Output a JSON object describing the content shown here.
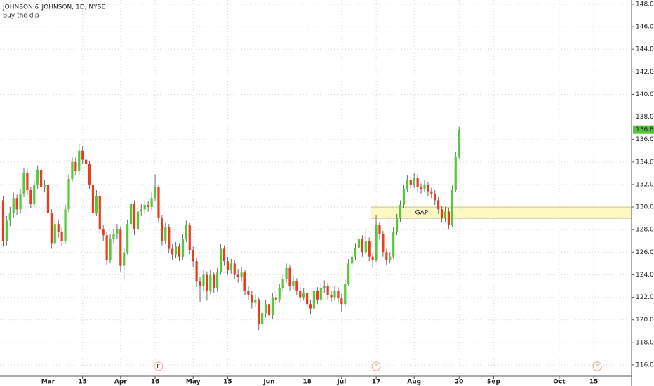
{
  "chart_data": {
    "type": "candlestick",
    "title": "JOHNSON & JOHNSON, 1D, NYSE",
    "subtitle": "Buy the dip",
    "categories": [
      null,
      null,
      null,
      null,
      null,
      null,
      null,
      null,
      null,
      null,
      null,
      null,
      null,
      "Mar",
      null,
      null,
      null,
      null,
      null,
      null,
      null,
      null,
      null,
      "15",
      null,
      null,
      null,
      null,
      null,
      null,
      null,
      null,
      null,
      null,
      "Apr",
      null,
      null,
      null,
      null,
      null,
      null,
      null,
      null,
      null,
      "16",
      null,
      null,
      null,
      null,
      null,
      null,
      null,
      null,
      null,
      null,
      "May",
      null,
      null,
      null,
      null,
      null,
      null,
      null,
      null,
      null,
      "15",
      null,
      null,
      null,
      null,
      null,
      null,
      null,
      null,
      null,
      null,
      null,
      "Jun",
      null,
      null,
      null,
      null,
      null,
      null,
      null,
      null,
      null,
      null,
      "18",
      null,
      null,
      null,
      null,
      null,
      null,
      null,
      null,
      null,
      "Jul",
      null,
      null,
      null,
      null,
      null,
      null,
      null,
      null,
      null,
      "17",
      null,
      null,
      null,
      null,
      null,
      null,
      null,
      null,
      null,
      null,
      "Aug",
      null,
      null,
      null,
      null,
      null,
      null,
      null,
      null,
      null,
      null,
      null,
      null,
      "20",
      null,
      null,
      null,
      null,
      null,
      null,
      null,
      null,
      null,
      "Sep",
      null,
      null,
      null,
      null,
      null,
      null,
      null,
      null,
      null,
      null,
      null,
      null,
      null,
      null,
      null,
      null,
      null,
      null,
      "Oct",
      null,
      null,
      null,
      null,
      null,
      null,
      null,
      null,
      null,
      "15",
      null,
      null,
      null,
      null,
      null,
      null,
      null,
      null
    ],
    "open": [
      130.6,
      127.0,
      128.8,
      129.5,
      130.8,
      129.8,
      131.2,
      133.0,
      131.5,
      130.3,
      132.0,
      133.3,
      131.8,
      132.0,
      129.5,
      126.8,
      128.5,
      127.8,
      127.0,
      129.8,
      132.5,
      134.0,
      133.2,
      135.0,
      134.2,
      133.8,
      132.0,
      129.5,
      131.0,
      128.0,
      127.5,
      125.3,
      127.2,
      127.6,
      128.0,
      124.8,
      126.0,
      128.5,
      130.3,
      128.0,
      129.6,
      129.8,
      130.2,
      130.0,
      130.8,
      131.8,
      129.0,
      127.0,
      128.2,
      126.3,
      125.8,
      126.5,
      125.6,
      127.2,
      128.4,
      126.2,
      125.2,
      123.4,
      123.0,
      124.0,
      122.6,
      124.0,
      122.8,
      124.2,
      126.3,
      125.2,
      124.4,
      125.0,
      124.0,
      123.8,
      124.2,
      122.6,
      122.2,
      121.5,
      121.8,
      119.6,
      120.6,
      121.4,
      120.4,
      122.0,
      121.8,
      122.8,
      123.6,
      124.6,
      123.0,
      123.4,
      122.6,
      122.0,
      122.4,
      121.4,
      121.0,
      122.6,
      121.8,
      122.8,
      123.0,
      122.2,
      122.0,
      122.6,
      121.9,
      121.4,
      123.2,
      125.0,
      125.6,
      126.4,
      127.2,
      126.0,
      127.0,
      125.6,
      125.3,
      128.4,
      127.6,
      126.0,
      125.3,
      125.6,
      127.8,
      129.0,
      130.2,
      131.6,
      132.4,
      132.0,
      132.6,
      131.8,
      131.6,
      132.0,
      131.4,
      131.2,
      130.6,
      129.8,
      129.0,
      129.6,
      128.4,
      131.5,
      134.5,
      null,
      null,
      null,
      null,
      null,
      null,
      null,
      null,
      null,
      null,
      null,
      null,
      null,
      null,
      null,
      null,
      null,
      null,
      null,
      null,
      null,
      null,
      null,
      null,
      null,
      null,
      null,
      null,
      null,
      null,
      null,
      null,
      null,
      null,
      null,
      null,
      null,
      null,
      null,
      null,
      null,
      null,
      null,
      null,
      null,
      null,
      null
    ],
    "high": [
      131.0,
      129.2,
      130.0,
      131.3,
      131.1,
      131.6,
      133.5,
      133.4,
      131.8,
      132.4,
      133.7,
      133.6,
      132.4,
      132.2,
      129.8,
      128.9,
      128.9,
      128.2,
      130.2,
      132.9,
      134.5,
      134.4,
      135.6,
      135.4,
      134.6,
      134.1,
      132.3,
      131.5,
      131.3,
      128.4,
      127.8,
      127.6,
      128.0,
      128.5,
      128.3,
      126.4,
      128.9,
      130.8,
      130.6,
      130.0,
      130.3,
      130.6,
      130.5,
      131.3,
      132.9,
      132.0,
      129.3,
      128.6,
      128.5,
      126.7,
      126.9,
      126.8,
      127.6,
      128.8,
      128.6,
      126.5,
      125.5,
      123.8,
      124.4,
      124.3,
      124.4,
      124.2,
      124.6,
      126.7,
      126.6,
      125.6,
      125.4,
      125.3,
      124.5,
      124.7,
      124.4,
      123.0,
      122.6,
      122.3,
      122.0,
      121.2,
      121.8,
      121.7,
      122.4,
      122.6,
      123.2,
      124.0,
      125.0,
      124.9,
      123.9,
      123.7,
      122.9,
      122.8,
      122.7,
      121.8,
      123.0,
      122.9,
      123.3,
      123.5,
      123.3,
      122.6,
      123.0,
      122.9,
      122.3,
      123.6,
      125.4,
      126.0,
      126.8,
      127.6,
      127.5,
      127.9,
      127.3,
      125.9,
      129.3,
      128.7,
      127.9,
      126.3,
      126.0,
      128.2,
      129.4,
      130.6,
      132.0,
      132.8,
      132.7,
      133.0,
      132.9,
      132.1,
      132.4,
      132.2,
      131.7,
      131.5,
      130.9,
      130.1,
      130.0,
      129.9,
      131.9,
      134.9,
      137.1,
      null,
      null,
      null,
      null,
      null,
      null,
      null,
      null,
      null,
      null,
      null,
      null,
      null,
      null,
      null,
      null,
      null,
      null,
      null,
      null,
      null,
      null,
      null,
      null,
      null,
      null,
      null,
      null,
      null,
      null,
      null,
      null,
      null,
      null,
      null,
      null,
      null,
      null,
      null,
      null,
      null,
      null,
      null,
      null,
      null,
      null,
      null
    ],
    "low": [
      126.5,
      126.6,
      128.3,
      129.1,
      129.3,
      129.4,
      130.9,
      131.1,
      129.9,
      130.0,
      131.6,
      131.4,
      131.3,
      129.1,
      126.3,
      126.5,
      127.3,
      126.6,
      126.8,
      129.5,
      132.2,
      132.8,
      132.9,
      133.8,
      133.3,
      131.6,
      129.0,
      129.2,
      127.6,
      127.0,
      124.9,
      125.0,
      126.8,
      127.2,
      124.3,
      123.6,
      125.8,
      128.2,
      127.5,
      127.7,
      129.2,
      129.4,
      129.6,
      129.7,
      130.5,
      128.6,
      126.6,
      126.7,
      125.9,
      125.3,
      125.5,
      125.2,
      125.3,
      126.9,
      125.8,
      124.7,
      122.9,
      121.6,
      122.6,
      121.7,
      122.3,
      122.4,
      122.5,
      124.0,
      124.8,
      124.0,
      124.1,
      123.6,
      123.3,
      123.4,
      122.2,
      121.8,
      121.0,
      121.1,
      119.1,
      119.2,
      120.2,
      120.0,
      120.1,
      121.3,
      121.5,
      122.5,
      123.3,
      122.6,
      122.7,
      122.2,
      121.6,
      121.7,
      120.9,
      120.5,
      120.8,
      121.4,
      121.5,
      122.4,
      121.8,
      121.6,
      121.7,
      121.5,
      120.7,
      121.1,
      123.0,
      124.7,
      125.3,
      126.1,
      125.6,
      125.8,
      125.2,
      124.6,
      125.1,
      127.1,
      125.6,
      124.9,
      125.0,
      125.4,
      127.5,
      128.7,
      129.9,
      131.3,
      131.6,
      131.7,
      131.4,
      131.2,
      131.3,
      131.0,
      130.8,
      130.2,
      129.4,
      128.6,
      128.7,
      128.0,
      128.2,
      131.3,
      134.3,
      null,
      null,
      null,
      null,
      null,
      null,
      null,
      null,
      null,
      null,
      null,
      null,
      null,
      null,
      null,
      null,
      null,
      null,
      null,
      null,
      null,
      null,
      null,
      null,
      null,
      null,
      null,
      null,
      null,
      null,
      null,
      null,
      null,
      null,
      null,
      null,
      null,
      null,
      null,
      null,
      null,
      null,
      null,
      null,
      null,
      null,
      null
    ],
    "close": [
      127.0,
      128.8,
      129.5,
      130.8,
      129.8,
      131.2,
      133.0,
      131.5,
      130.3,
      132.0,
      133.3,
      131.8,
      132.0,
      129.5,
      126.8,
      128.5,
      127.8,
      127.0,
      129.8,
      132.5,
      134.0,
      133.2,
      135.0,
      134.2,
      133.8,
      132.0,
      129.5,
      131.0,
      128.0,
      127.5,
      125.3,
      127.2,
      127.6,
      128.0,
      124.8,
      126.0,
      128.5,
      130.3,
      128.0,
      129.6,
      129.8,
      130.2,
      130.0,
      130.8,
      131.8,
      129.0,
      127.0,
      128.2,
      126.3,
      125.8,
      126.5,
      125.6,
      127.2,
      128.4,
      126.2,
      125.2,
      123.4,
      123.0,
      124.0,
      122.6,
      124.0,
      122.8,
      124.2,
      126.3,
      125.2,
      124.4,
      125.0,
      124.0,
      123.8,
      124.2,
      122.6,
      122.2,
      121.5,
      121.8,
      119.6,
      120.6,
      121.4,
      120.4,
      122.0,
      121.8,
      122.8,
      123.6,
      124.6,
      123.0,
      123.4,
      122.6,
      122.0,
      122.4,
      121.4,
      121.0,
      122.6,
      121.8,
      122.8,
      123.0,
      122.2,
      122.0,
      122.6,
      121.9,
      121.4,
      123.2,
      125.0,
      125.6,
      126.4,
      127.2,
      126.0,
      127.0,
      125.6,
      125.3,
      128.4,
      127.6,
      126.0,
      125.3,
      125.6,
      127.8,
      129.0,
      130.2,
      131.6,
      132.4,
      132.0,
      132.6,
      131.8,
      131.6,
      132.0,
      131.4,
      131.2,
      130.6,
      129.8,
      129.0,
      129.6,
      128.4,
      131.5,
      134.5,
      136.87,
      null,
      null,
      null,
      null,
      null,
      null,
      null,
      null,
      null,
      null,
      null,
      null,
      null,
      null,
      null,
      null,
      null,
      null,
      null,
      null,
      null,
      null,
      null,
      null,
      null,
      null,
      null,
      null,
      null,
      null,
      null,
      null,
      null,
      null,
      null,
      null,
      null,
      null,
      null,
      null,
      null,
      null,
      null,
      null,
      null,
      null,
      null
    ],
    "up_color": "#53c93a",
    "down_color": "#ef3b1d",
    "wick_color": "#6b6b6b",
    "ylim": [
      115.0,
      148.37
    ],
    "yticks": [
      {
        "value": 116,
        "label": "116.00"
      },
      {
        "value": 118,
        "label": "118.00"
      },
      {
        "value": 120,
        "label": "120.00"
      },
      {
        "value": 122,
        "label": "122.00"
      },
      {
        "value": 124,
        "label": "124.00"
      },
      {
        "value": 126,
        "label": "126.00"
      },
      {
        "value": 128,
        "label": "128.00"
      },
      {
        "value": 130,
        "label": "130.00"
      },
      {
        "value": 132,
        "label": "132.00"
      },
      {
        "value": 134,
        "label": "134.00"
      },
      {
        "value": 136,
        "label": "136.00"
      },
      {
        "value": 138,
        "label": "138.00"
      },
      {
        "value": 140,
        "label": "140.00"
      },
      {
        "value": 142,
        "label": "142.00"
      },
      {
        "value": 144,
        "label": "144.00"
      },
      {
        "value": 146,
        "label": "146.00"
      },
      {
        "value": 148,
        "label": "148.00"
      }
    ],
    "grid": true,
    "zones": [
      {
        "label": "GAP",
        "start": 107,
        "low": 129.0,
        "high": 130.0,
        "color": "#fbf8c4"
      }
    ],
    "events": [
      {
        "index": 45,
        "label": "E"
      },
      {
        "index": 108,
        "label": "E"
      },
      {
        "index": 172,
        "label": "E"
      }
    ]
  }
}
